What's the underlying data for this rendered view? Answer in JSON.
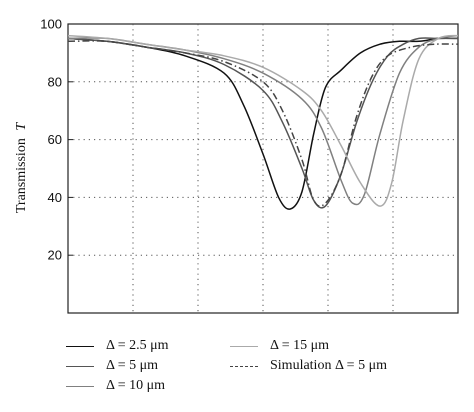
{
  "chart_data": {
    "type": "line",
    "title": "",
    "xlabel": "",
    "ylabel": "Transmission T",
    "ylabel_main": "Transmission",
    "ylabel_symbol": "T",
    "xlim": [
      0,
      1
    ],
    "ylim": [
      0,
      100
    ],
    "yticks": [
      "20",
      "40",
      "60",
      "80",
      "100"
    ],
    "grid": true,
    "legend_position": "bottom",
    "series": [
      {
        "name": "Δ = 2.5 μm",
        "color": "#111111",
        "dash": "solid",
        "x": [
          0.0,
          0.1,
          0.2,
          0.3,
          0.4,
          0.45,
          0.5,
          0.54,
          0.57,
          0.6,
          0.63,
          0.66,
          0.7,
          0.75,
          0.8,
          0.85,
          0.9,
          0.95,
          1.0
        ],
        "y": [
          95,
          94,
          92,
          89,
          83,
          72,
          55,
          40,
          36,
          42,
          62,
          78,
          84,
          90,
          93,
          94,
          94,
          95,
          95
        ]
      },
      {
        "name": "Δ = 5 μm",
        "color": "#555555",
        "dash": "solid",
        "x": [
          0.0,
          0.1,
          0.2,
          0.3,
          0.4,
          0.5,
          0.55,
          0.6,
          0.63,
          0.66,
          0.7,
          0.74,
          0.78,
          0.82,
          0.86,
          0.9,
          0.95,
          1.0
        ],
        "y": [
          95,
          94,
          92,
          90,
          86,
          77,
          66,
          50,
          39,
          37,
          48,
          66,
          80,
          89,
          93,
          95,
          95,
          95
        ]
      },
      {
        "name": "Δ = 10 μm",
        "color": "#808080",
        "dash": "solid",
        "x": [
          0.0,
          0.1,
          0.2,
          0.3,
          0.4,
          0.5,
          0.6,
          0.65,
          0.7,
          0.73,
          0.76,
          0.8,
          0.85,
          0.9,
          0.95,
          1.0
        ],
        "y": [
          95,
          95,
          93,
          91,
          88,
          83,
          74,
          64,
          46,
          38,
          41,
          62,
          83,
          92,
          95,
          96
        ]
      },
      {
        "name": "Δ = 15 μm",
        "color": "#aaaaaa",
        "dash": "solid",
        "x": [
          0.0,
          0.1,
          0.2,
          0.3,
          0.4,
          0.5,
          0.6,
          0.65,
          0.7,
          0.75,
          0.8,
          0.83,
          0.86,
          0.9,
          0.95,
          1.0
        ],
        "y": [
          96,
          95,
          93,
          91,
          89,
          85,
          77,
          70,
          58,
          45,
          37,
          45,
          67,
          88,
          95,
          96
        ]
      },
      {
        "name": "Simulation Δ = 5 μm",
        "color": "#444444",
        "dash": "dashdot",
        "x": [
          0.0,
          0.1,
          0.2,
          0.3,
          0.4,
          0.5,
          0.55,
          0.6,
          0.63,
          0.66,
          0.7,
          0.74,
          0.78,
          0.82,
          0.88,
          0.94,
          1.0
        ],
        "y": [
          94,
          94,
          92,
          90,
          87,
          80,
          70,
          53,
          39,
          38,
          48,
          68,
          82,
          89,
          92,
          93,
          93
        ]
      }
    ]
  }
}
